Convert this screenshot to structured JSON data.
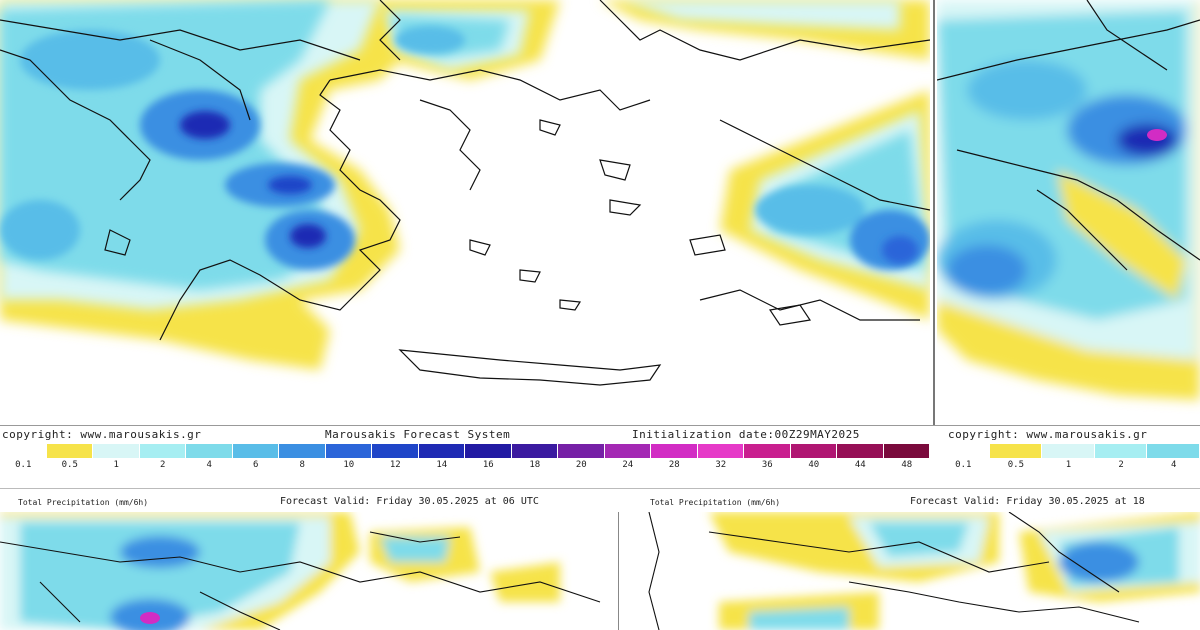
{
  "footer": {
    "copyright": "copyright: www.marousakis.gr",
    "system": "Marousakis Forecast System",
    "initialization": "Initialization date:00Z29MAY2025",
    "copyright_right": "copyright: www.marousakis.gr"
  },
  "scale": {
    "labels": [
      "0.1",
      "0.5",
      "1",
      "2",
      "4",
      "6",
      "8",
      "10",
      "12",
      "14",
      "16",
      "18",
      "20",
      "24",
      "28",
      "32",
      "36",
      "40",
      "44",
      "48"
    ],
    "labels_right": [
      "0.1",
      "0.5",
      "1",
      "2",
      "4"
    ],
    "colors": [
      "#ffffff",
      "#f6e34a",
      "#d8f6f6",
      "#a6eef2",
      "#7edbea",
      "#59bde8",
      "#3b8fe2",
      "#2b65d9",
      "#1f45c8",
      "#1f2ab4",
      "#221aa3",
      "#3b1aa0",
      "#7620a6",
      "#a428b4",
      "#d22cc4",
      "#e63ac8",
      "#c91f8f",
      "#b01672",
      "#960f56",
      "#7a0a3c"
    ],
    "colors_right": [
      "#ffffff",
      "#f6e34a",
      "#d8f6f6",
      "#a6eef2",
      "#7edbea"
    ]
  },
  "bottom_left": {
    "title": "Total Precipitation (mm/6h)",
    "valid": "Forecast Valid:  Friday 30.05.2025 at 06 UTC"
  },
  "bottom_right": {
    "title": "Total Precipitation (mm/6h)",
    "valid": "Forecast Valid:  Friday 30.05.2025 at 18"
  }
}
